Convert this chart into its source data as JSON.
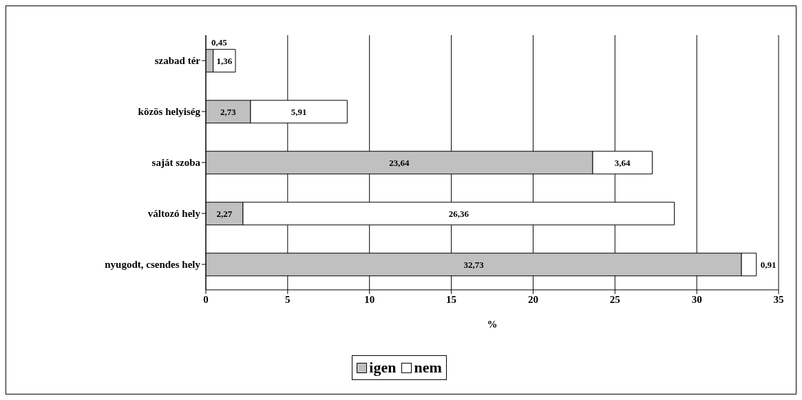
{
  "chart_data": {
    "type": "bar",
    "orientation": "horizontal",
    "stacked": true,
    "xlabel": "%",
    "categories": [
      "szabad tér",
      "közös helyiség",
      "saját szoba",
      "változó hely",
      "nyugodt, csendes hely"
    ],
    "series": [
      {
        "name": "igen",
        "color": "#c0c0c0",
        "values": [
          0.45,
          2.73,
          23.64,
          2.27,
          32.73
        ],
        "value_labels": [
          "0,45",
          "2,73",
          "23,64",
          "2,27",
          "32,73"
        ]
      },
      {
        "name": "nem",
        "color": "#ffffff",
        "values": [
          1.36,
          5.91,
          3.64,
          26.36,
          0.91
        ],
        "value_labels": [
          "1,36",
          "5,91",
          "3,64",
          "26,36",
          "0,91"
        ]
      }
    ],
    "xlim": [
      0,
      35
    ],
    "xticks": [
      0,
      5,
      10,
      15,
      20,
      25,
      30,
      35
    ],
    "grid": "x",
    "legend": "bottom"
  }
}
